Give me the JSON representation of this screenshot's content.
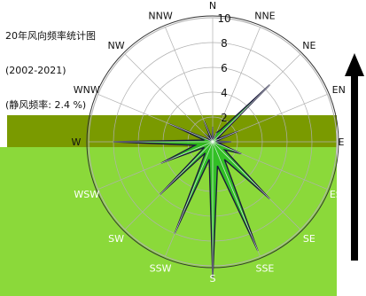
{
  "chart_data": {
    "type": "radar",
    "title": "20年风向频率统计图",
    "subtitle": "(2002-2021)",
    "calm_note": "(静风频率: 2.4 %)",
    "directions": [
      "N",
      "NNE",
      "NE",
      "ENE",
      "E",
      "ESE",
      "SE",
      "SSE",
      "S",
      "SSW",
      "SW",
      "WSW",
      "W",
      "WNW",
      "NW",
      "NNW"
    ],
    "direction_labels_shown": [
      "N",
      "NNE",
      "NE",
      "EN",
      "E",
      "ESE",
      "SE",
      "SSE",
      "S",
      "SSW",
      "SW",
      "WSW",
      "W",
      "WNW",
      "NW",
      "NNW"
    ],
    "values": [
      1.2,
      0.8,
      6.5,
      2.2,
      1.5,
      2.5,
      6.5,
      9.5,
      11.0,
      8.0,
      6.0,
      4.5,
      8.0,
      3.8,
      0.9,
      1.8
    ],
    "r_ticks": [
      2,
      4,
      6,
      8,
      10
    ],
    "rlim": [
      0,
      10
    ],
    "north_arrow_label": "N"
  },
  "colors": {
    "background": "#ffffff",
    "grid": "#b0b0b0",
    "outline": "#1a1a3a",
    "band_olive": "#7a9a00",
    "band_green": "#8bd93a",
    "rose_fill_green": "#22bb22",
    "arrow": "#000000"
  }
}
